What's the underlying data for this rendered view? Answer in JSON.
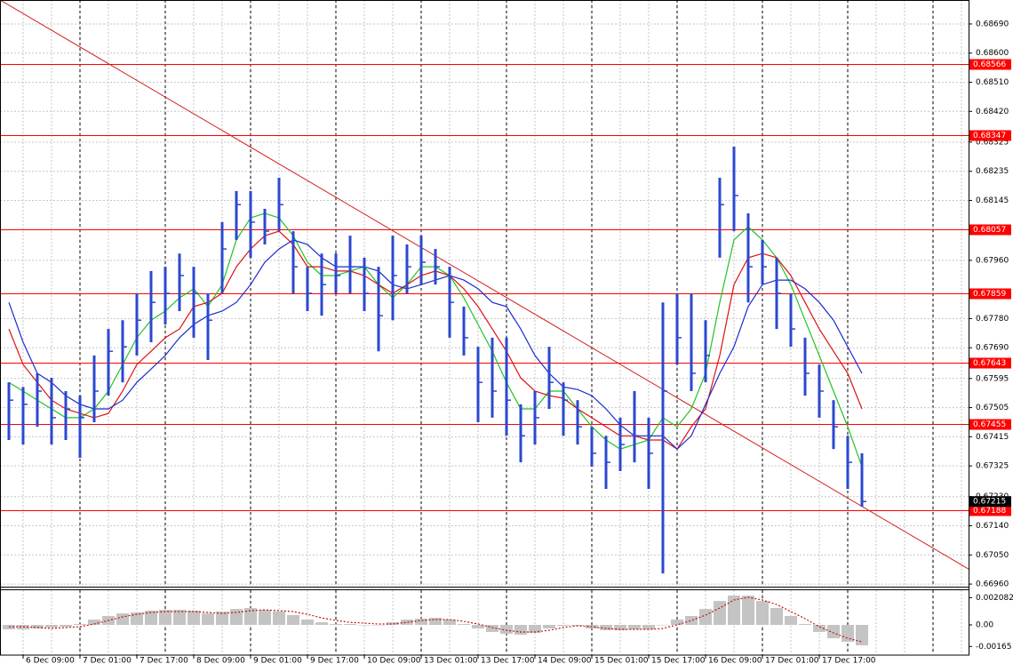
{
  "chart_data": {
    "type": "ohlc",
    "color": "#2b48d0",
    "grid": true,
    "categories": [
      null,
      "6 Dec 09:00",
      null,
      null,
      null,
      "7 Dec 01:00",
      null,
      null,
      null,
      "7 Dec 17:00",
      null,
      null,
      null,
      "8 Dec 09:00",
      null,
      null,
      null,
      "9 Dec 01:00",
      null,
      null,
      null,
      "9 Dec 17:00",
      null,
      null,
      null,
      "10 Dec 09:00",
      null,
      null,
      null,
      "13 Dec 01:00",
      null,
      null,
      null,
      "13 Dec 17:00",
      null,
      null,
      null,
      "14 Dec 09:00",
      null,
      null,
      null,
      "15 Dec 01:00",
      null,
      null,
      null,
      "15 Dec 17:00",
      null,
      null,
      null,
      "16 Dec 09:00",
      null,
      null,
      null,
      "17 Dec 01:00",
      null,
      null,
      null,
      "17 Dec 17:00",
      null,
      null,
      null
    ],
    "high": [
      0.67583,
      0.67569,
      0.67611,
      0.67597,
      0.67556,
      0.67542,
      0.67666,
      0.67748,
      0.67775,
      0.67858,
      0.67927,
      0.6794,
      0.67981,
      0.6794,
      0.67858,
      0.68078,
      0.68174,
      0.68174,
      0.68119,
      0.68215,
      0.6805,
      0.6794,
      0.67981,
      0.67981,
      0.68036,
      0.67968,
      0.6794,
      0.68036,
      0.68009,
      0.68036,
      0.67995,
      0.6794,
      0.67817,
      0.67693,
      0.67721,
      0.67721,
      0.67515,
      0.67556,
      0.67693,
      0.67583,
      0.67528,
      0.67446,
      0.67418,
      0.67474,
      0.67556,
      0.67474,
      0.6783,
      0.67858,
      0.67858,
      0.67775,
      0.68215,
      0.68311,
      0.68105,
      0.68023,
      0.67968,
      0.67858,
      0.67721,
      0.67638,
      0.67528,
      0.67418,
      0.67364
    ],
    "low": [
      0.67405,
      0.67391,
      0.67446,
      0.67391,
      0.67405,
      0.6735,
      0.6746,
      0.67542,
      0.67583,
      0.67666,
      0.67707,
      0.67762,
      0.67803,
      0.67721,
      0.67652,
      0.67858,
      0.68023,
      0.67968,
      0.68009,
      0.6805,
      0.67858,
      0.67803,
      0.67789,
      0.67858,
      0.67858,
      0.67803,
      0.67679,
      0.67775,
      0.67858,
      0.67885,
      0.67885,
      0.67721,
      0.67666,
      0.6746,
      0.67474,
      0.67418,
      0.67336,
      0.67391,
      0.67501,
      0.67418,
      0.67391,
      0.67323,
      0.67254,
      0.67309,
      0.67336,
      0.67254,
      0.66993,
      0.67638,
      0.67556,
      0.67583,
      0.67968,
      0.6805,
      0.6783,
      0.67885,
      0.67748,
      0.67693,
      0.67542,
      0.67474,
      0.67377,
      0.67254,
      0.67199
    ],
    "close": [
      0.67528,
      0.67515,
      0.67556,
      0.67474,
      0.67501,
      0.67474,
      0.67556,
      0.67679,
      0.67693,
      0.67775,
      0.6783,
      0.67858,
      0.67913,
      0.67858,
      0.67775,
      0.67995,
      0.68132,
      0.68078,
      0.6805,
      0.68132,
      0.6794,
      0.67858,
      0.67885,
      0.67913,
      0.6794,
      0.67858,
      0.67789,
      0.67913,
      0.6794,
      0.67954,
      0.6794,
      0.6783,
      0.67721,
      0.67583,
      0.67556,
      0.67528,
      0.67418,
      0.67474,
      0.67583,
      0.67528,
      0.67446,
      0.67364,
      0.67336,
      0.67391,
      0.67418,
      0.67364,
      0.67556,
      0.67721,
      0.67611,
      0.67666,
      0.68132,
      0.6816,
      0.6794,
      0.6794,
      0.67858,
      0.67748,
      0.67611,
      0.67556,
      0.67446,
      0.67336,
      0.67215
    ],
    "moving_averages": [
      {
        "color": "#22c322",
        "values": [
          0.67583,
          0.67556,
          0.67528,
          0.67501,
          0.67474,
          0.67474,
          0.67501,
          0.67556,
          0.67638,
          0.67721,
          0.67775,
          0.67803,
          0.67844,
          0.67872,
          0.67817,
          0.67885,
          0.68023,
          0.68091,
          0.68105,
          0.68091,
          0.68036,
          0.67954,
          0.67913,
          0.67913,
          0.67927,
          0.6794,
          0.67885,
          0.67844,
          0.67885,
          0.6794,
          0.6794,
          0.67913,
          0.67844,
          0.67762,
          0.67679,
          0.67583,
          0.67501,
          0.67501,
          0.67556,
          0.67556,
          0.67501,
          0.67446,
          0.67405,
          0.67377,
          0.67391,
          0.67405,
          0.67474,
          0.67446,
          0.67501,
          0.67611,
          0.6783,
          0.68023,
          0.68064,
          0.68023,
          0.67968,
          0.67885,
          0.67775,
          0.67666,
          0.67556,
          0.67446,
          0.67323
        ]
      },
      {
        "color": "#e01010",
        "values": [
          0.67748,
          0.67638,
          0.67583,
          0.67528,
          0.67501,
          0.67487,
          0.67474,
          0.67487,
          0.67556,
          0.67638,
          0.67679,
          0.67721,
          0.67748,
          0.67817,
          0.6783,
          0.67858,
          0.6794,
          0.67995,
          0.68036,
          0.6805,
          0.68009,
          0.6794,
          0.6794,
          0.67927,
          0.67927,
          0.67913,
          0.67885,
          0.67858,
          0.67885,
          0.67913,
          0.67927,
          0.67913,
          0.67872,
          0.67817,
          0.67748,
          0.67679,
          0.67597,
          0.67556,
          0.67542,
          0.67534,
          0.67501,
          0.67474,
          0.67446,
          0.67418,
          0.67418,
          0.67405,
          0.67405,
          0.67377,
          0.67446,
          0.67501,
          0.67666,
          0.67885,
          0.67968,
          0.67981,
          0.67968,
          0.67913,
          0.6783,
          0.67748,
          0.67679,
          0.67611,
          0.67501
        ]
      },
      {
        "color": "#1a2ccf",
        "values": [
          0.6783,
          0.67707,
          0.67611,
          0.67583,
          0.67542,
          0.67515,
          0.67501,
          0.67501,
          0.67528,
          0.67583,
          0.67624,
          0.67666,
          0.67721,
          0.67762,
          0.67789,
          0.67803,
          0.6783,
          0.67885,
          0.67954,
          0.67995,
          0.68023,
          0.68009,
          0.67968,
          0.6794,
          0.6794,
          0.6794,
          0.67927,
          0.67885,
          0.67872,
          0.67885,
          0.67899,
          0.67913,
          0.67899,
          0.67872,
          0.6783,
          0.67817,
          0.67748,
          0.67666,
          0.67611,
          0.67569,
          0.67561,
          0.67542,
          0.67501,
          0.67451,
          0.67418,
          0.67418,
          0.67418,
          0.67377,
          0.67418,
          0.67515,
          0.67611,
          0.67693,
          0.67817,
          0.67885,
          0.67899,
          0.67899,
          0.67872,
          0.6783,
          0.67775,
          0.67693,
          0.67611
        ]
      }
    ],
    "ylim": [
      0.66952,
      0.68764
    ],
    "yticks": [
      {
        "value": 0.6869,
        "label": "0.68690"
      },
      {
        "value": 0.686,
        "label": "0.68600"
      },
      {
        "value": 0.6851,
        "label": "0.68510"
      },
      {
        "value": 0.6842,
        "label": "0.68420"
      },
      0.68325,
      0.68235,
      0.68145,
      {
        "value": 0.6796,
        "label": "0.67960"
      },
      {
        "value": 0.6778,
        "label": "0.67780"
      },
      {
        "value": 0.6769,
        "label": "0.67690"
      },
      0.67595,
      0.67505,
      0.67415,
      0.67325,
      {
        "value": 0.6723,
        "label": "0.67230"
      },
      {
        "value": 0.6714,
        "label": "0.67140"
      },
      {
        "value": 0.6705,
        "label": "0.67050"
      },
      {
        "value": 0.6696,
        "label": "0.66960"
      }
    ],
    "levels": [
      0.68566,
      0.68347,
      0.68057,
      0.67859,
      0.67643,
      0.67455,
      0.67188
    ],
    "level_color": "#ff0000",
    "current_price": 0.67215,
    "trendline": [
      0.68748,
      0.672
    ],
    "trendline_color": "#d42020",
    "oscillator": {
      "ylim": [
        -0.00224,
        0.00265
      ],
      "yticks": [
        0.002082,
        {
          "value": 0,
          "label": "0.00"
        },
        -0.00165
      ],
      "histogram_color": "#c4c4c4",
      "signal_color": "#c81010",
      "histogram": [
        -0.00034,
        -0.00034,
        -0.00027,
        -0.0002,
        -0.00014,
        7e-05,
        0.00041,
        0.00068,
        0.00088,
        0.00095,
        0.00109,
        0.00115,
        0.00115,
        0.00109,
        0.00088,
        0.00102,
        0.00122,
        0.00129,
        0.00115,
        0.00102,
        0.00075,
        0.00041,
        0.0002,
        7e-05,
        7e-05,
        0,
        0,
        0.0002,
        0.00041,
        0.00048,
        0.00054,
        0.00041,
        7e-05,
        -0.00027,
        -0.00054,
        -0.00068,
        -0.00075,
        -0.00061,
        -0.00027,
        -7e-05,
        -7e-05,
        -0.00027,
        -0.00041,
        -0.00041,
        -0.00034,
        -0.00034,
        0,
        0.00041,
        0.00068,
        0.00122,
        0.00183,
        0.00224,
        0.00224,
        0.00183,
        0.00129,
        0.00068,
        7e-05,
        -0.00054,
        -0.00102,
        -0.00129,
        -0.00156
      ],
      "signal": [
        -0.00014,
        -0.00014,
        -0.0002,
        -0.00027,
        -0.0002,
        -0.00014,
        7e-05,
        0.00034,
        0.00061,
        0.00081,
        0.00095,
        0.00102,
        0.00102,
        0.00102,
        0.00095,
        0.00088,
        0.00095,
        0.00109,
        0.00115,
        0.00109,
        0.00102,
        0.00081,
        0.00054,
        0.00034,
        0.0002,
        0.00014,
        7e-05,
        7e-05,
        0.0002,
        0.00034,
        0.00041,
        0.00041,
        0.00027,
        7e-05,
        -0.0002,
        -0.00041,
        -0.00054,
        -0.00054,
        -0.00041,
        -0.0002,
        -7e-05,
        -0.00014,
        -0.00027,
        -0.00034,
        -0.00034,
        -0.00034,
        -0.00027,
        0,
        0.00034,
        0.00075,
        0.00129,
        0.0019,
        0.00211,
        0.0019,
        0.00156,
        0.00102,
        0.00048,
        -0.00014,
        -0.00061,
        -0.00102,
        -0.00129
      ]
    }
  }
}
